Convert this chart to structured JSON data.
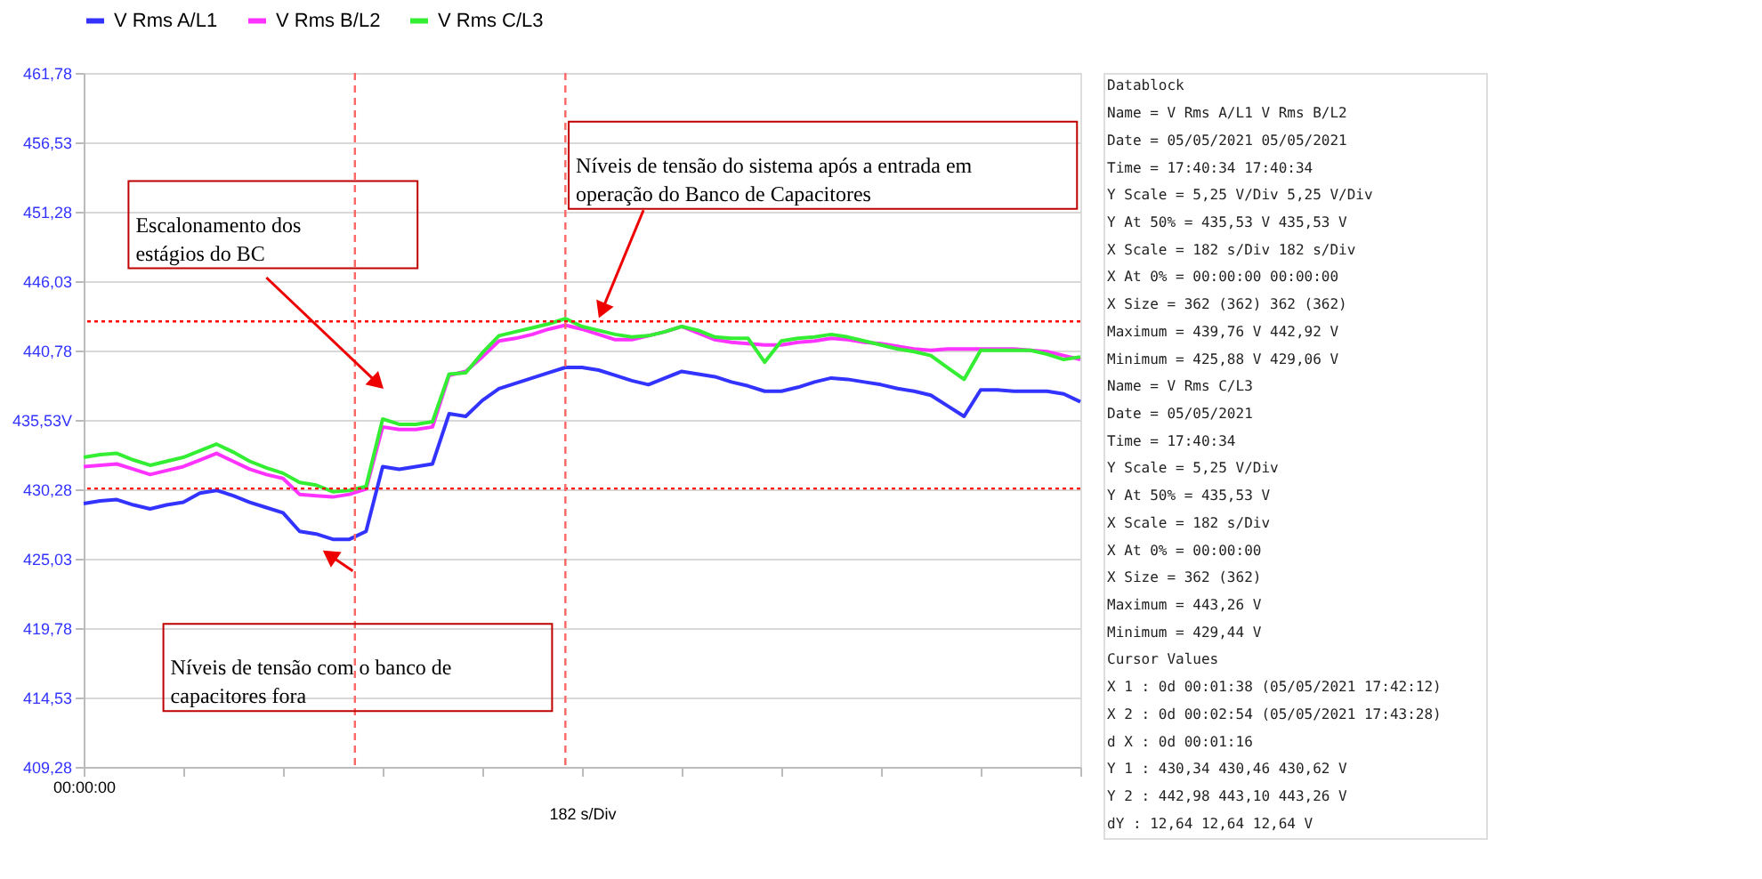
{
  "chart_data": {
    "type": "line",
    "xlabel": "182 s/Div",
    "categories": [
      "00:00:00",
      null,
      null,
      null,
      null,
      null,
      null,
      null,
      null,
      null,
      null,
      null,
      null,
      null,
      null,
      null,
      null,
      null,
      null,
      null,
      null,
      null,
      null,
      null,
      null,
      null,
      null,
      null,
      null,
      null,
      null,
      null,
      null,
      null,
      null,
      null,
      null,
      null,
      null,
      null,
      null,
      null,
      null,
      null,
      null,
      null,
      null,
      null,
      null,
      null,
      null,
      null,
      null,
      null,
      null,
      null,
      null,
      null,
      null,
      null,
      null
    ],
    "ylim": [
      409.28,
      461.78
    ],
    "yticks": [
      {
        "value": 409.28,
        "label": "409,28"
      },
      {
        "value": 414.53,
        "label": "414,53"
      },
      {
        "value": 419.78,
        "label": "419,78"
      },
      {
        "value": 425.03,
        "label": "425,03"
      },
      {
        "value": 430.28,
        "label": "430,28"
      },
      {
        "value": 435.53,
        "label": "435,53V"
      },
      {
        "value": 440.78,
        "label": "440,78"
      },
      {
        "value": 446.03,
        "label": "446,03"
      },
      {
        "value": 451.28,
        "label": "451,28"
      },
      {
        "value": 456.53,
        "label": "456,53"
      },
      {
        "value": 461.78,
        "label": "461,78"
      }
    ],
    "grid": "y",
    "legend": "top",
    "line_style": "solid",
    "marker": "none",
    "series": [
      {
        "name": "V Rms A/L1",
        "color": "#3333ff",
        "values": [
          429.2,
          429.4,
          429.5,
          429.1,
          428.8,
          429.1,
          429.3,
          430.0,
          430.2,
          429.8,
          429.3,
          428.9,
          428.5,
          427.1,
          426.9,
          426.5,
          426.5,
          427.1,
          432.0,
          431.8,
          432.0,
          432.2,
          436.0,
          435.8,
          437.0,
          437.9,
          438.3,
          438.7,
          439.1,
          439.5,
          439.5,
          439.3,
          438.9,
          438.5,
          438.2,
          438.7,
          439.2,
          439.0,
          438.8,
          438.4,
          438.1,
          437.7,
          437.7,
          438.0,
          438.4,
          438.7,
          438.6,
          438.4,
          438.2,
          437.9,
          437.7,
          437.4,
          436.6,
          435.8,
          437.8,
          437.8,
          437.7,
          437.7,
          437.7,
          437.5,
          436.9
        ]
      },
      {
        "name": "V Rms B/L2",
        "color": "#ff33ff",
        "values": [
          432.0,
          432.1,
          432.2,
          431.8,
          431.4,
          431.7,
          432.0,
          432.5,
          433.0,
          432.4,
          431.8,
          431.4,
          431.1,
          429.9,
          429.8,
          429.7,
          429.9,
          430.3,
          435.0,
          434.8,
          434.8,
          435.0,
          438.9,
          439.2,
          440.3,
          441.5,
          441.7,
          442.0,
          442.4,
          442.7,
          442.4,
          442.0,
          441.6,
          441.6,
          441.9,
          442.2,
          442.6,
          442.1,
          441.6,
          441.4,
          441.3,
          441.2,
          441.2,
          441.4,
          441.5,
          441.7,
          441.6,
          441.4,
          441.3,
          441.1,
          440.9,
          440.8,
          440.9,
          440.9,
          440.9,
          440.9,
          440.9,
          440.8,
          440.7,
          440.4,
          440.1
        ]
      },
      {
        "name": "V Rms C/L3",
        "color": "#33ee33",
        "values": [
          432.7,
          432.9,
          433.0,
          432.5,
          432.1,
          432.4,
          432.7,
          433.2,
          433.7,
          433.1,
          432.4,
          431.9,
          431.5,
          430.8,
          430.6,
          430.1,
          430.2,
          430.5,
          435.6,
          435.2,
          435.2,
          435.4,
          439.0,
          439.1,
          440.6,
          441.9,
          442.2,
          442.5,
          442.8,
          443.2,
          442.6,
          442.3,
          442.0,
          441.8,
          441.9,
          442.2,
          442.6,
          442.3,
          441.8,
          441.7,
          441.7,
          439.9,
          441.5,
          441.7,
          441.8,
          442.0,
          441.8,
          441.5,
          441.2,
          440.9,
          440.7,
          440.4,
          439.5,
          438.6,
          440.8,
          440.8,
          440.8,
          440.8,
          440.5,
          440.1,
          440.3
        ]
      }
    ],
    "ref_lines": [
      {
        "axis": "y",
        "value": 430.34,
        "label": null,
        "color": "#ff0000",
        "line_style": "dotted"
      },
      {
        "axis": "y",
        "value": 442.98,
        "label": null,
        "color": "#ff0000",
        "line_style": "dotted"
      }
    ],
    "annotations": [
      "Escalonamento dos estágios do BC",
      "Níveis de tensão do sistema após a entrada em operação do Banco de Capacitores",
      "Níveis de tensão com o banco de capacitores fora",
      "Datablock",
      "Name     = V Rms A/L1   V Rms B/L2",
      "Date     = 05/05/2021   05/05/2021",
      "Time     = 17:40:34     17:40:34",
      "Y Scale  =  5,25 V/Div   5,25 V/Div",
      "Y At 50% = 435,53 V     435,53 V",
      "X Scale  = 182   s/Div  182   s/Div",
      "X At 0%  = 00:00:00     00:00:00",
      "X Size   = 362 (362)    362 (362)",
      "Maximum  = 439,76 V     442,92 V",
      "Minimum  = 425,88 V     429,06 V",
      "Name     = V Rms C/L3",
      "Date     = 05/05/2021",
      "Time     = 17:40:34",
      "Y Scale  =  5,25 V/Div",
      "Y At 50% = 435,53 V",
      "X Scale  = 182   s/Div",
      "X At 0%  = 00:00:00",
      "X Size   = 362 (362)",
      "Maximum  = 443,26 V",
      "Minimum  = 429,44 V",
      "Cursor Values",
      "X 1 :  0d 00:01:38 (05/05/2021 17:42:12)",
      "X 2 :  0d 00:02:54 (05/05/2021 17:43:28)",
      "d X :  0d 00:01:16",
      "Y 1 :  430,34   430,46   430,62 V",
      "Y 2 :  442,98   443,10   443,26 V",
      "dY  :  12,64    12,64    12,64 V"
    ]
  }
}
